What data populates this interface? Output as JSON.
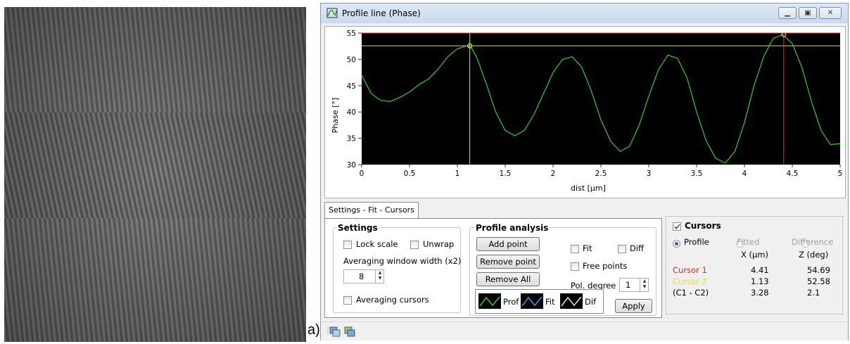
{
  "figure_label": "a)",
  "window": {
    "title": "Profile line (Phase)",
    "controls": [
      "minimize",
      "restore",
      "close"
    ]
  },
  "chart_data": {
    "type": "line",
    "xlabel": "dist [µm]",
    "ylabel": "Phase [°]",
    "xlim": [
      0,
      5
    ],
    "ylim": [
      30,
      55
    ],
    "xticks": [
      "0",
      "0.5",
      "1",
      "1.5",
      "2",
      "2.5",
      "3",
      "3.5",
      "4",
      "4.5",
      "5"
    ],
    "yticks": [
      "30",
      "35",
      "40",
      "45",
      "50",
      "55"
    ],
    "background": "#000000",
    "series": [
      {
        "color": "#33cc33",
        "x": [
          0,
          0.1,
          0.2,
          0.3,
          0.4,
          0.5,
          0.6,
          0.7,
          0.8,
          0.9,
          1.0,
          1.1,
          1.15,
          1.2,
          1.3,
          1.4,
          1.5,
          1.6,
          1.7,
          1.8,
          1.9,
          2.0,
          2.1,
          2.2,
          2.3,
          2.4,
          2.5,
          2.6,
          2.7,
          2.8,
          2.9,
          3.0,
          3.1,
          3.2,
          3.3,
          3.4,
          3.5,
          3.6,
          3.7,
          3.8,
          3.9,
          4.0,
          4.1,
          4.2,
          4.3,
          4.4,
          4.5,
          4.6,
          4.7,
          4.8,
          4.9,
          5.0
        ],
        "y": [
          47,
          43.5,
          42.2,
          42,
          42.8,
          43.8,
          45.2,
          46.3,
          48.2,
          50.5,
          52,
          52.6,
          52.1,
          50.5,
          45.5,
          40,
          36.5,
          35.5,
          36.5,
          39.5,
          43.5,
          47.5,
          50,
          50.5,
          48.5,
          44,
          38.5,
          34.5,
          32.5,
          33.5,
          37.5,
          43,
          48,
          50.8,
          50.2,
          46.5,
          40,
          34.5,
          31.2,
          30.3,
          32.5,
          38,
          45,
          50.5,
          54,
          54.7,
          53,
          48.5,
          42,
          36.5,
          33.8,
          34
        ]
      }
    ],
    "hlines": [
      {
        "y": 55,
        "color": "#ff2020"
      },
      {
        "y": 52.58,
        "color": "#e0e040"
      }
    ],
    "vlines": [
      {
        "x": 1.13,
        "color": "#e0e040"
      },
      {
        "x": 4.41,
        "color": "#ff2020"
      }
    ],
    "markers": [
      {
        "x": 1.13,
        "y": 52.58,
        "color": "#e0e040"
      },
      {
        "x": 4.41,
        "y": 54.69,
        "color": "#ff9090"
      }
    ]
  },
  "tab": {
    "label": "Settings - Fit - Cursors"
  },
  "settings": {
    "title": "Settings",
    "lock_scale": "Lock scale",
    "unwrap": "Unwrap",
    "averaging_label": "Averaging window width (x2)",
    "averaging_value": "8",
    "averaging_cursors": "Averaging cursors"
  },
  "profile_analysis": {
    "title": "Profile analysis",
    "add_point": "Add point",
    "remove_point": "Remove point",
    "remove_all": "Remove All",
    "fit": "Fit",
    "diff": "Diff",
    "free_points": "Free points",
    "pol_degree_label": "Pol. degree",
    "pol_degree_value": "1",
    "legend": [
      "Prof",
      "Fit",
      "Dif"
    ],
    "apply": "Apply"
  },
  "cursors": {
    "title": "Cursors",
    "checked": true,
    "modes": [
      "Profile",
      "Fitted",
      "Difference"
    ],
    "selected_mode": "Profile",
    "col_x": "X (µm)",
    "col_z": "Z (deg)",
    "rows": [
      {
        "label": "Cursor 1",
        "x": "4.41",
        "z": "54.69",
        "color": "#e8202a"
      },
      {
        "label": "Cursor 2",
        "x": "1.13",
        "z": "52.58",
        "color": "#e8e020"
      },
      {
        "label": "(C1 - C2)",
        "x": "3.28",
        "z": "2.1",
        "color": "#000000"
      }
    ]
  }
}
